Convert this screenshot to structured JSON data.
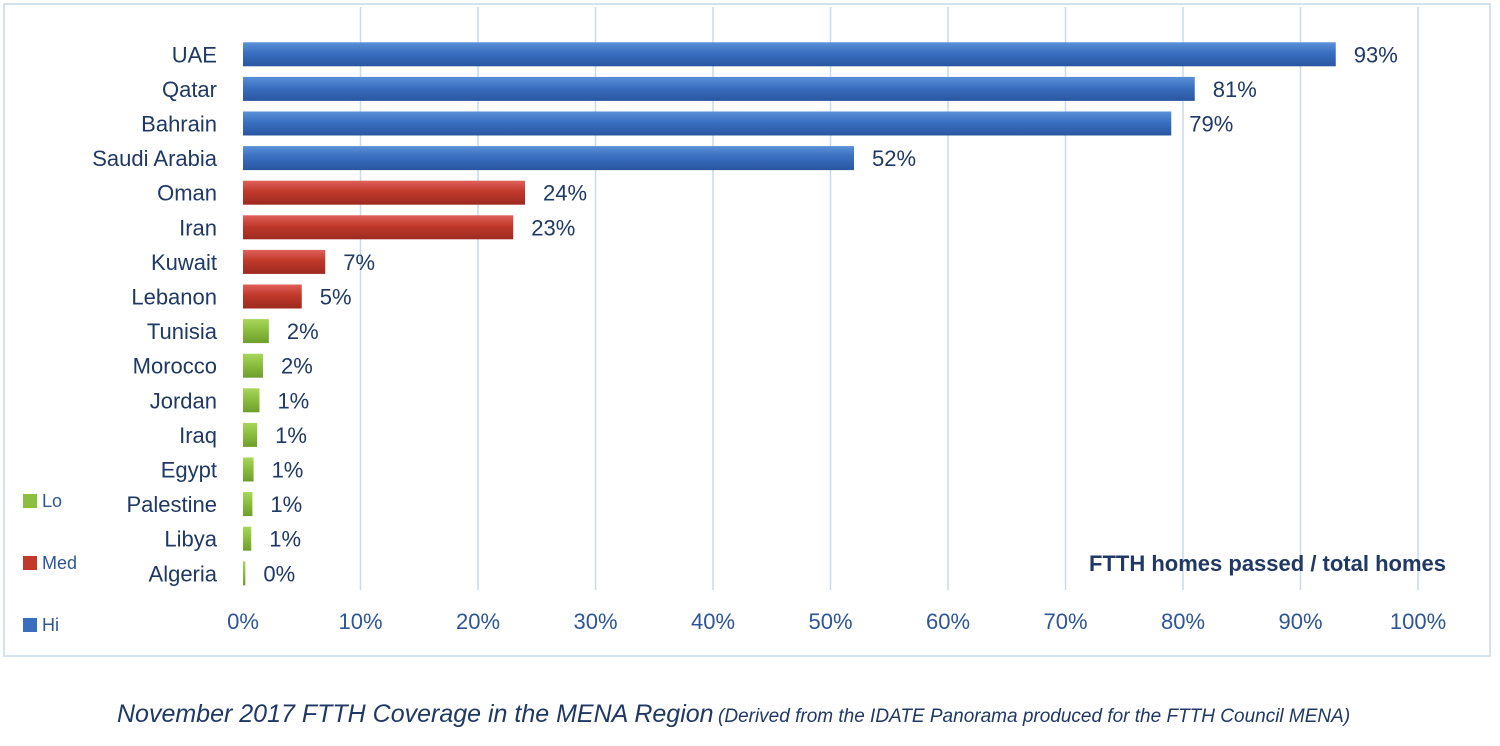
{
  "chart_data": {
    "type": "bar",
    "orientation": "horizontal",
    "categories": [
      "UAE",
      "Qatar",
      "Bahrain",
      "Saudi Arabia",
      "Oman",
      "Iran",
      "Kuwait",
      "Lebanon",
      "Tunisia",
      "Morocco",
      "Jordan",
      "Iraq",
      "Egypt",
      "Palestine",
      "Libya",
      "Algeria"
    ],
    "values": [
      93,
      81,
      79,
      52,
      24,
      23,
      7,
      5,
      2.2,
      1.7,
      1.4,
      1.2,
      0.9,
      0.8,
      0.7,
      0.2
    ],
    "value_labels": [
      "93%",
      "81%",
      "79%",
      "52%",
      "24%",
      "23%",
      "7%",
      "5%",
      "2%",
      "2%",
      "1%",
      "1%",
      "1%",
      "1%",
      "1%",
      "0%"
    ],
    "tier": [
      "Hi",
      "Hi",
      "Hi",
      "Hi",
      "Med",
      "Med",
      "Med",
      "Med",
      "Lo",
      "Lo",
      "Lo",
      "Lo",
      "Lo",
      "Lo",
      "Lo",
      "Lo"
    ],
    "xlabel": "FTTH homes passed / total homes",
    "xlim": [
      0,
      100
    ],
    "xticks": [
      "0%",
      "10%",
      "20%",
      "30%",
      "40%",
      "50%",
      "60%",
      "70%",
      "80%",
      "90%",
      "100%"
    ],
    "grid": "vertical",
    "legend": {
      "placement": "bottom-left",
      "items": [
        {
          "name": "Lo",
          "color": "#8cbf3f"
        },
        {
          "name": "Med",
          "color": "#c0392b"
        },
        {
          "name": "Hi",
          "color": "#3a6fc0"
        }
      ]
    },
    "colors": {
      "Hi": "#3a6fc0",
      "Med": "#c0392b",
      "Lo": "#8cbf3f"
    }
  },
  "caption": {
    "main": "November 2017 FTTH Coverage in the MENA Region",
    "sub": "(Derived from the IDATE Panorama produced for the FTTH Council MENA)"
  }
}
